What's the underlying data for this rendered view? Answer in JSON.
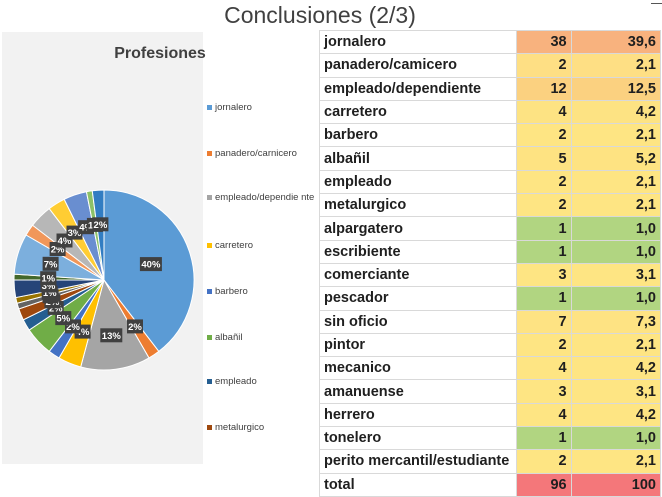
{
  "slide": {
    "title": "Conclusiones (2/3)"
  },
  "chart_data": {
    "type": "pie",
    "title": "Profesiones",
    "categories": [
      "jornalero",
      "panadero/carnicero",
      "empleado/dependiente",
      "carretero",
      "barbero",
      "albañil",
      "empleado",
      "metalurgico",
      "alpargatero",
      "escribiente",
      "comerciante",
      "pescador",
      "sin oficio",
      "pintor",
      "mecanico",
      "amanuense",
      "herrero",
      "tonelero",
      "perito mercantil/estudiante"
    ],
    "values": [
      38,
      2,
      12,
      4,
      2,
      5,
      2,
      2,
      1,
      1,
      3,
      1,
      7,
      2,
      4,
      3,
      4,
      1,
      2
    ],
    "legend_entries": [
      "jornalero",
      "panadero/carnicero",
      "empleado/dependie nte",
      "carretero",
      "barbero",
      "albañil",
      "empleado",
      "metalurgico"
    ],
    "slice_labels": [
      "40%",
      "2%",
      "13%",
      "4%",
      "2%",
      "5%",
      "2%",
      "2%",
      "1%",
      "1%",
      "3%",
      "1%",
      "7%",
      "2%",
      "4%",
      "3%",
      "4%",
      "1%",
      "2%"
    ],
    "colors": [
      "#5b9bd5",
      "#ed7d31",
      "#a5a5a5",
      "#ffc000",
      "#4472c4",
      "#70ad47",
      "#255e91",
      "#9e480e",
      "#636363",
      "#997300",
      "#264478",
      "#43682b",
      "#7cafdd",
      "#f1975a",
      "#b7b7b7",
      "#ffcd33",
      "#698ed0",
      "#8cc168",
      "#327dc2"
    ],
    "legend": "right"
  },
  "table": {
    "rows": [
      {
        "name": "jornalero",
        "count": "38",
        "pct": "39,6",
        "color": "#f8b27e"
      },
      {
        "name": "panadero/camicero",
        "count": "2",
        "pct": "2,1",
        "color": "#fedf84"
      },
      {
        "name": "empleado/dependiente",
        "count": "12",
        "pct": "12,5",
        "color": "#fbd180"
      },
      {
        "name": "carretero",
        "count": "4",
        "pct": "4,2",
        "color": "#fde383"
      },
      {
        "name": "barbero",
        "count": "2",
        "pct": "2,1",
        "color": "#fee583"
      },
      {
        "name": "albañil",
        "count": "5",
        "pct": "5,2",
        "color": "#fee382"
      },
      {
        "name": "empleado",
        "count": "2",
        "pct": "2,1",
        "color": "#fee583"
      },
      {
        "name": "metalurgico",
        "count": "2",
        "pct": "2,1",
        "color": "#fee583"
      },
      {
        "name": "alpargatero",
        "count": "1",
        "pct": "1,0",
        "color": "#b1d581"
      },
      {
        "name": "escribiente",
        "count": "1",
        "pct": "1,0",
        "color": "#b1d581"
      },
      {
        "name": "comerciante",
        "count": "3",
        "pct": "3,1",
        "color": "#fee583"
      },
      {
        "name": "pescador",
        "count": "1",
        "pct": "1,0",
        "color": "#b1d581"
      },
      {
        "name": "sin oficio",
        "count": "7",
        "pct": "7,3",
        "color": "#fee383"
      },
      {
        "name": "pintor",
        "count": "2",
        "pct": "2,1",
        "color": "#fee583"
      },
      {
        "name": "mecanico",
        "count": "4",
        "pct": "4,2",
        "color": "#fee583"
      },
      {
        "name": "amanuense",
        "count": "3",
        "pct": "3,1",
        "color": "#fee583"
      },
      {
        "name": "herrero",
        "count": "4",
        "pct": "4,2",
        "color": "#fee583"
      },
      {
        "name": "tonelero",
        "count": "1",
        "pct": "1,0",
        "color": "#b1d581"
      },
      {
        "name": "perito mercantil/estudiante",
        "count": "2",
        "pct": "2,1",
        "color": "#fee583"
      },
      {
        "name": "total",
        "count": "96",
        "pct": "100",
        "color": "#f4777a"
      }
    ]
  }
}
